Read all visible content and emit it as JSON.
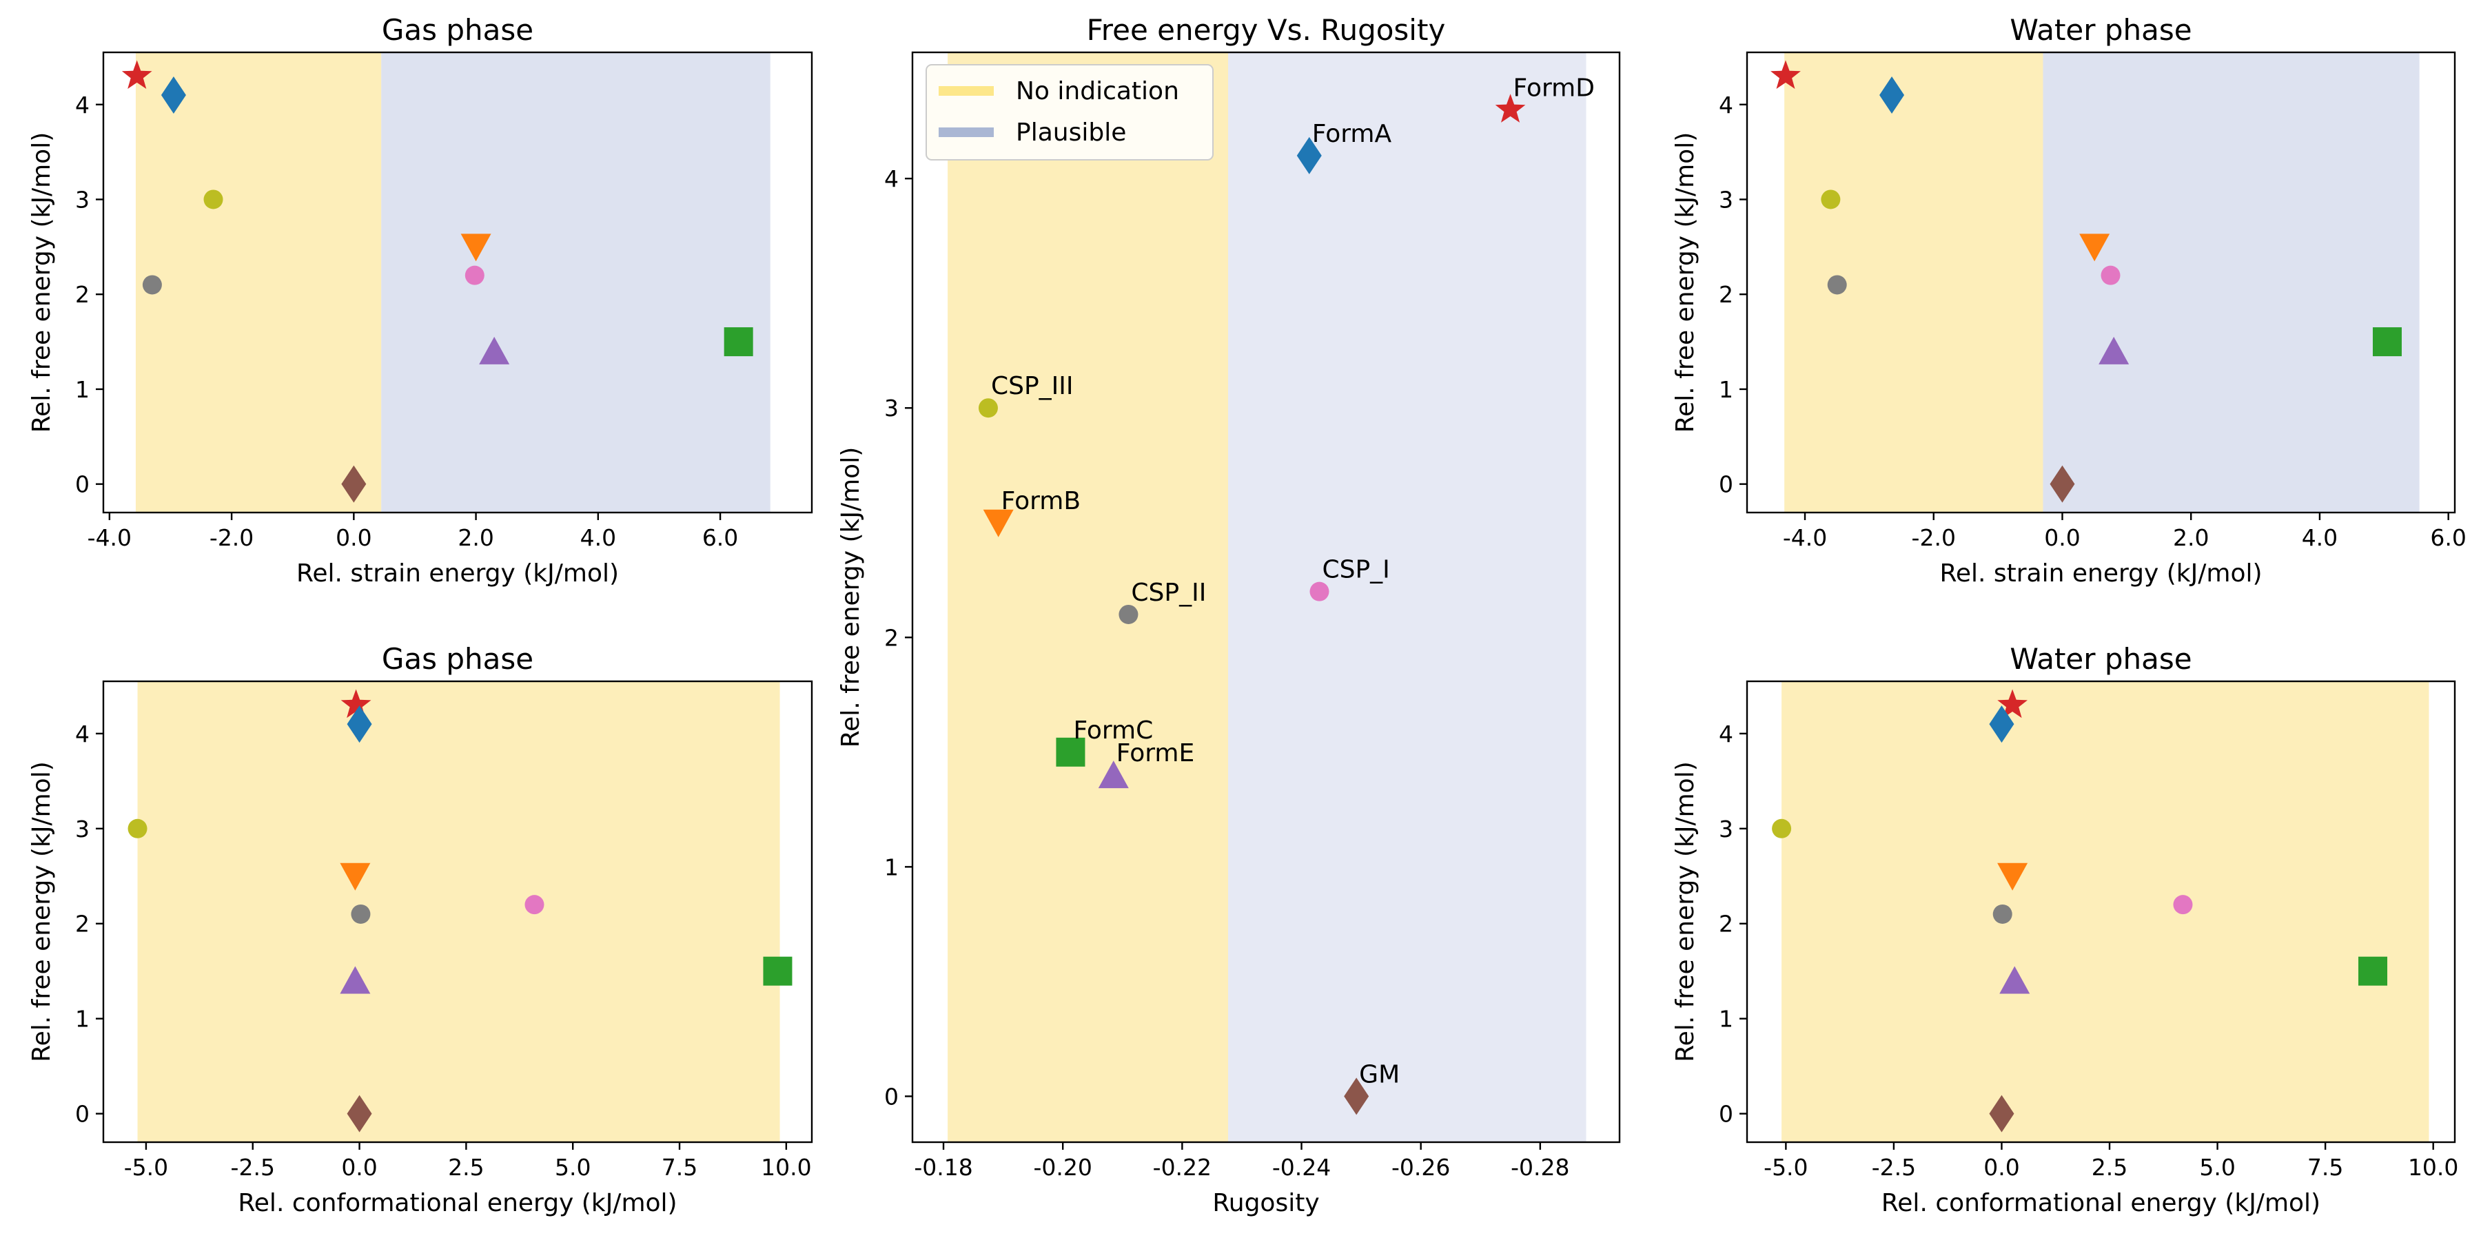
{
  "colors": {
    "no_indication_band": "#fdeeba",
    "plausible_band": "#dde2f0",
    "plausible_band_center": "#e6e9f4",
    "legend_no_indication": "#fde78a",
    "legend_plausible": "#aab7d4"
  },
  "forms": {
    "FormD": {
      "color": "#d62728",
      "marker": "star"
    },
    "FormA": {
      "color": "#1f77b4",
      "marker": "diamond"
    },
    "CSP_III": {
      "color": "#bcbd22",
      "marker": "circle"
    },
    "CSP_II": {
      "color": "#7f7f7f",
      "marker": "circle"
    },
    "FormB": {
      "color": "#ff7f0e",
      "marker": "triangle-down"
    },
    "CSP_I": {
      "color": "#e377c2",
      "marker": "circle"
    },
    "FormE": {
      "color": "#9467bd",
      "marker": "triangle-up"
    },
    "FormC": {
      "color": "#2ca02c",
      "marker": "square"
    },
    "GM": {
      "color": "#8c564b",
      "marker": "diamond"
    }
  },
  "legend": [
    {
      "label": "No indication",
      "band": "noind"
    },
    {
      "label": "Plausible",
      "band": "plaus"
    }
  ],
  "chart_data": [
    {
      "id": "gas-strain",
      "type": "scatter",
      "title": "Gas phase",
      "xlabel": "Rel. strain energy (kJ/mol)",
      "ylabel": "Rel. free energy (kJ/mol)",
      "xlim": [
        -4.1,
        7.5
      ],
      "ylim": [
        -0.3,
        4.55
      ],
      "xticks": [
        -4,
        -2,
        0,
        2,
        4,
        6
      ],
      "xtick_labels": [
        "-4.0",
        "-2.0",
        "0.0",
        "2.0",
        "4.0",
        "6.0"
      ],
      "yticks": [
        0,
        1,
        2,
        3,
        4
      ],
      "ytick_labels": [
        "0",
        "1",
        "2",
        "3",
        "4"
      ],
      "bands": [
        {
          "from": -3.57,
          "to": 0.45,
          "kind": "noind"
        },
        {
          "from": 0.45,
          "to": 6.82,
          "kind": "plaus"
        }
      ],
      "points": [
        {
          "name": "FormD",
          "x": -3.55,
          "y": 4.3
        },
        {
          "name": "FormA",
          "x": -2.95,
          "y": 4.1
        },
        {
          "name": "CSP_III",
          "x": -2.3,
          "y": 3.0
        },
        {
          "name": "CSP_II",
          "x": -3.3,
          "y": 2.1
        },
        {
          "name": "FormB",
          "x": 2.0,
          "y": 2.5
        },
        {
          "name": "CSP_I",
          "x": 1.98,
          "y": 2.2
        },
        {
          "name": "FormE",
          "x": 2.3,
          "y": 1.4
        },
        {
          "name": "FormC",
          "x": 6.3,
          "y": 1.5
        },
        {
          "name": "GM",
          "x": 0.0,
          "y": 0.0
        }
      ]
    },
    {
      "id": "gas-conf",
      "type": "scatter",
      "title": "Gas phase",
      "xlabel": "Rel. conformational energy (kJ/mol)",
      "ylabel": "Rel. free energy (kJ/mol)",
      "xlim": [
        -6.0,
        10.6
      ],
      "ylim": [
        -0.3,
        4.55
      ],
      "xticks": [
        -5,
        -2.5,
        0,
        2.5,
        5,
        7.5,
        10
      ],
      "xtick_labels": [
        "-5.0",
        "-2.5",
        "0.0",
        "2.5",
        "5.0",
        "7.5",
        "10.0"
      ],
      "yticks": [
        0,
        1,
        2,
        3,
        4
      ],
      "ytick_labels": [
        "0",
        "1",
        "2",
        "3",
        "4"
      ],
      "bands": [
        {
          "from": -5.2,
          "to": 9.85,
          "kind": "noind"
        }
      ],
      "points": [
        {
          "name": "FormD",
          "x": -0.08,
          "y": 4.3
        },
        {
          "name": "FormA",
          "x": 0.0,
          "y": 4.1
        },
        {
          "name": "CSP_III",
          "x": -5.2,
          "y": 3.0
        },
        {
          "name": "CSP_II",
          "x": 0.03,
          "y": 2.1
        },
        {
          "name": "FormB",
          "x": -0.1,
          "y": 2.5
        },
        {
          "name": "CSP_I",
          "x": 4.1,
          "y": 2.2
        },
        {
          "name": "FormE",
          "x": -0.1,
          "y": 1.4
        },
        {
          "name": "FormC",
          "x": 9.8,
          "y": 1.5
        },
        {
          "name": "GM",
          "x": 0.0,
          "y": 0.0
        }
      ]
    },
    {
      "id": "rugosity",
      "type": "scatter",
      "title": "Free energy Vs. Rugosity",
      "xlabel": "Rugosity",
      "ylabel": "Rel. free energy (kJ/mol)",
      "xlim": [
        -0.1748,
        -0.2933
      ],
      "ylim": [
        -0.2,
        4.55
      ],
      "xticks": [
        -0.18,
        -0.2,
        -0.22,
        -0.24,
        -0.26,
        -0.28
      ],
      "xtick_labels": [
        "-0.18",
        "-0.20",
        "-0.22",
        "-0.24",
        "-0.26",
        "-0.28"
      ],
      "yticks": [
        0,
        1,
        2,
        3,
        4
      ],
      "ytick_labels": [
        "0",
        "1",
        "2",
        "3",
        "4"
      ],
      "bands": [
        {
          "from": -0.1807,
          "to": -0.2277,
          "kind": "noind"
        },
        {
          "from": -0.2277,
          "to": -0.2877,
          "kind": "plaus_center"
        }
      ],
      "points": [
        {
          "name": "FormD",
          "x": -0.275,
          "y": 4.3,
          "label": "FormD"
        },
        {
          "name": "FormA",
          "x": -0.2413,
          "y": 4.1,
          "label": "FormA"
        },
        {
          "name": "CSP_III",
          "x": -0.1875,
          "y": 3.0,
          "label": "CSP_III"
        },
        {
          "name": "FormB",
          "x": -0.1892,
          "y": 2.5,
          "label": "FormB"
        },
        {
          "name": "CSP_II",
          "x": -0.211,
          "y": 2.1,
          "label": "CSP_II"
        },
        {
          "name": "CSP_I",
          "x": -0.243,
          "y": 2.2,
          "label": "CSP_I"
        },
        {
          "name": "FormC",
          "x": -0.2013,
          "y": 1.5,
          "label": "FormC"
        },
        {
          "name": "FormE",
          "x": -0.2085,
          "y": 1.4,
          "label": "FormE"
        },
        {
          "name": "GM",
          "x": -0.2492,
          "y": 0.0,
          "label": "GM"
        }
      ]
    },
    {
      "id": "water-strain",
      "type": "scatter",
      "title": "Water phase",
      "xlabel": "Rel. strain energy (kJ/mol)",
      "ylabel": "Rel. free energy (kJ/mol)",
      "xlim": [
        -4.9,
        6.1
      ],
      "ylim": [
        -0.3,
        4.55
      ],
      "xticks": [
        -4,
        -2,
        0,
        2,
        4,
        6
      ],
      "xtick_labels": [
        "-4.0",
        "-2.0",
        "0.0",
        "2.0",
        "4.0",
        "6.0"
      ],
      "yticks": [
        0,
        1,
        2,
        3,
        4
      ],
      "ytick_labels": [
        "0",
        "1",
        "2",
        "3",
        "4"
      ],
      "bands": [
        {
          "from": -4.32,
          "to": -0.3,
          "kind": "noind"
        },
        {
          "from": -0.3,
          "to": 5.55,
          "kind": "plaus"
        }
      ],
      "points": [
        {
          "name": "FormD",
          "x": -4.3,
          "y": 4.3
        },
        {
          "name": "FormA",
          "x": -2.65,
          "y": 4.1
        },
        {
          "name": "CSP_III",
          "x": -3.6,
          "y": 3.0
        },
        {
          "name": "CSP_II",
          "x": -3.5,
          "y": 2.1
        },
        {
          "name": "FormB",
          "x": 0.5,
          "y": 2.5
        },
        {
          "name": "CSP_I",
          "x": 0.75,
          "y": 2.2
        },
        {
          "name": "FormE",
          "x": 0.8,
          "y": 1.4
        },
        {
          "name": "FormC",
          "x": 5.05,
          "y": 1.5
        },
        {
          "name": "GM",
          "x": 0.0,
          "y": 0.0
        }
      ]
    },
    {
      "id": "water-conf",
      "type": "scatter",
      "title": "Water phase",
      "xlabel": "Rel. conformational energy (kJ/mol)",
      "ylabel": "Rel. free energy (kJ/mol)",
      "xlim": [
        -5.9,
        10.5
      ],
      "ylim": [
        -0.3,
        4.55
      ],
      "xticks": [
        -5,
        -2.5,
        0,
        2.5,
        5,
        7.5,
        10
      ],
      "xtick_labels": [
        "-5.0",
        "-2.5",
        "0.0",
        "2.5",
        "5.0",
        "7.5",
        "10.0"
      ],
      "yticks": [
        0,
        1,
        2,
        3,
        4
      ],
      "ytick_labels": [
        "0",
        "1",
        "2",
        "3",
        "4"
      ],
      "bands": [
        {
          "from": -5.1,
          "to": 9.9,
          "kind": "noind"
        }
      ],
      "points": [
        {
          "name": "FormD",
          "x": 0.25,
          "y": 4.3
        },
        {
          "name": "FormA",
          "x": 0.0,
          "y": 4.1
        },
        {
          "name": "CSP_III",
          "x": -5.1,
          "y": 3.0
        },
        {
          "name": "CSP_II",
          "x": 0.02,
          "y": 2.1
        },
        {
          "name": "FormB",
          "x": 0.25,
          "y": 2.5
        },
        {
          "name": "CSP_I",
          "x": 4.2,
          "y": 2.2
        },
        {
          "name": "FormE",
          "x": 0.3,
          "y": 1.4
        },
        {
          "name": "FormC",
          "x": 8.6,
          "y": 1.5
        },
        {
          "name": "GM",
          "x": 0.0,
          "y": 0.0
        }
      ]
    }
  ]
}
